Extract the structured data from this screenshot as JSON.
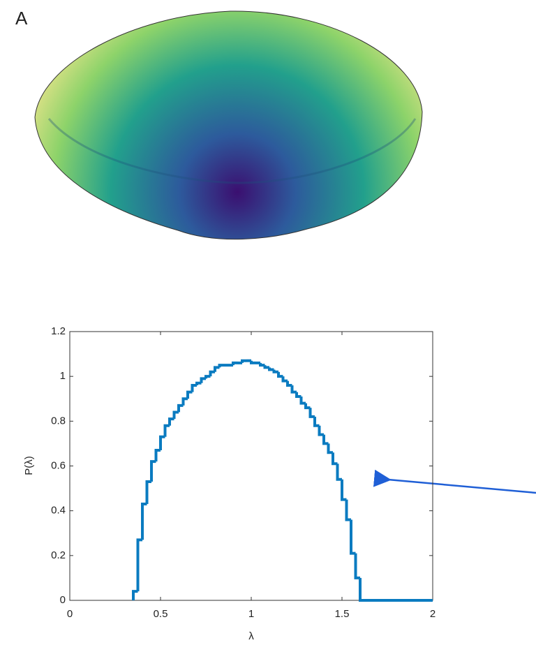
{
  "panel_label": "A",
  "chart_data": {
    "type": "histogram",
    "xlabel": "λ",
    "ylabel": "P(λ)",
    "color": "#0a7bc0",
    "bins": [
      0.35,
      0.375,
      0.4,
      0.425,
      0.45,
      0.475,
      0.5,
      0.525,
      0.55,
      0.575,
      0.6,
      0.625,
      0.65,
      0.675,
      0.7,
      0.725,
      0.75,
      0.775,
      0.8,
      0.825,
      0.85,
      0.875,
      0.9,
      0.925,
      0.95,
      0.975,
      1.0,
      1.025,
      1.05,
      1.075,
      1.1,
      1.125,
      1.15,
      1.175,
      1.2,
      1.225,
      1.25,
      1.275,
      1.3,
      1.325,
      1.35,
      1.375,
      1.4,
      1.425,
      1.45,
      1.475,
      1.5,
      1.525,
      1.55,
      1.575,
      1.6,
      1.625,
      1.65,
      1.675,
      1.7,
      1.725,
      1.75,
      1.775,
      1.8,
      1.825,
      1.85,
      1.875,
      1.9,
      1.925,
      1.95,
      1.975,
      2.0
    ],
    "values": [
      0.04,
      0.27,
      0.43,
      0.53,
      0.62,
      0.67,
      0.73,
      0.78,
      0.81,
      0.84,
      0.87,
      0.9,
      0.93,
      0.96,
      0.97,
      0.99,
      1.0,
      1.02,
      1.04,
      1.05,
      1.05,
      1.05,
      1.06,
      1.06,
      1.07,
      1.07,
      1.06,
      1.06,
      1.05,
      1.04,
      1.03,
      1.02,
      1.0,
      0.98,
      0.96,
      0.93,
      0.91,
      0.88,
      0.86,
      0.82,
      0.78,
      0.74,
      0.7,
      0.66,
      0.61,
      0.54,
      0.45,
      0.36,
      0.21,
      0.1,
      0,
      0,
      0,
      0,
      0,
      0,
      0,
      0,
      0,
      0,
      0,
      0,
      0,
      0,
      0,
      0
    ],
    "xlim": [
      0,
      2
    ],
    "ylim": [
      0,
      1.2
    ],
    "xticks": [
      0,
      0.5,
      1,
      1.5,
      2
    ],
    "yticks": [
      0,
      0.2,
      0.4,
      0.6,
      0.8,
      1,
      1.2
    ]
  }
}
